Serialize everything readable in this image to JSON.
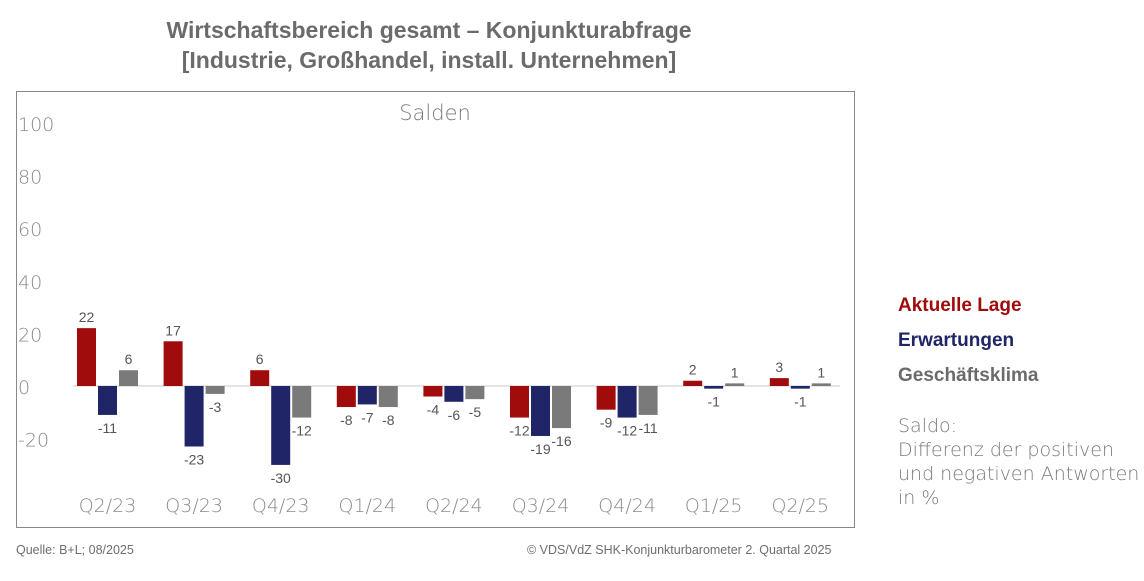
{
  "title_line1": "Wirtschaftsbereich gesamt – Konjunkturabfrage",
  "title_line2": "[Industrie, Großhandel, install. Unternehmen]",
  "legend": {
    "aktuelle_lage": "Aktuelle Lage",
    "erwartungen": "Erwartungen",
    "geschaeftsklima": "Geschäftsklima"
  },
  "note": {
    "line1": "Saldo:",
    "line2": "Differenz der positiven",
    "line3": "und negativen Antworten",
    "line4": "in %"
  },
  "footer": {
    "source": "Quelle: B+L; 08/2025",
    "copyright": "© VDS/VdZ SHK-Konjunkturbarometer 2. Quartal 2025"
  },
  "colors": {
    "aktuelle_lage": "#a00b0b",
    "erwartungen": "#1f2566",
    "geschaeftsklima": "#7a7a7a",
    "frame": "#888888",
    "axis_text": "#8a8a8a"
  },
  "chart_data": {
    "type": "bar",
    "title": "Salden",
    "categories": [
      "Q2/23",
      "Q3/23",
      "Q4/23",
      "Q1/24",
      "Q2/24",
      "Q3/24",
      "Q4/24",
      "Q1/25",
      "Q2/25"
    ],
    "series": [
      {
        "name": "Aktuelle Lage",
        "values": [
          22,
          17,
          6,
          -8,
          -4,
          -12,
          -9,
          2,
          3
        ]
      },
      {
        "name": "Erwartungen",
        "values": [
          -11,
          -23,
          -30,
          -7,
          -6,
          -19,
          -12,
          -1,
          -1
        ]
      },
      {
        "name": "Geschäftsklima",
        "values": [
          6,
          -3,
          -12,
          -8,
          -5,
          -16,
          -11,
          1,
          1
        ]
      }
    ],
    "yticks": [
      100,
      80,
      60,
      40,
      20,
      0,
      -20
    ],
    "ylim": [
      -35,
      105
    ],
    "legend_position": "right",
    "grid": false
  }
}
